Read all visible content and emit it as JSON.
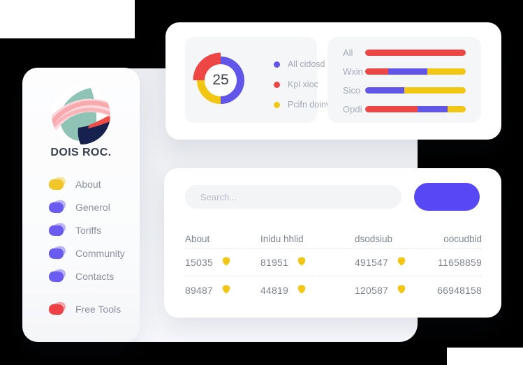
{
  "colors": {
    "accent_blue": "#6156e9",
    "accent_red": "#ee4545",
    "accent_yellow": "#f2c713",
    "button_blue": "#5847f5",
    "badge_yellow": "#f2c713"
  },
  "sidebar": {
    "brand": "DOIS ROC.",
    "items": [
      {
        "label": "About",
        "color": "#f0c629",
        "separated": false
      },
      {
        "label": "Generol",
        "color": "#6a5cf1",
        "separated": false
      },
      {
        "label": "Toriffs",
        "color": "#6a5cf1",
        "separated": false
      },
      {
        "label": "Community",
        "color": "#6a5cf1",
        "separated": false
      },
      {
        "label": "Contacts",
        "color": "#6a5cf1",
        "separated": false
      },
      {
        "label": "Free Tools",
        "color": "#ee4146",
        "separated": true
      }
    ]
  },
  "chart_data": [
    {
      "type": "pie",
      "subtype": "donut",
      "center_value": "25",
      "slices": [
        {
          "name": "All cidosd",
          "value": 50,
          "color": "#6156e9",
          "exploded": false
        },
        {
          "name": "Pcifn doinvi",
          "value": 25,
          "color": "#f2c713",
          "exploded": false
        },
        {
          "name": "Kpi xioc",
          "value": 25,
          "color": "#ee4545",
          "exploded": true
        }
      ],
      "legend_position": "right",
      "legend": [
        {
          "label": "All cidosd",
          "color": "#6156e9"
        },
        {
          "label": "Kpi xioc",
          "color": "#ee4545"
        },
        {
          "label": "Pcifn doinvi",
          "color": "#f2c713"
        }
      ]
    },
    {
      "type": "bar",
      "orientation": "horizontal",
      "stacked": true,
      "xlim": [
        0,
        100
      ],
      "categories": [
        "All",
        "Wxin",
        "Sico",
        "Opdi"
      ],
      "rows": [
        {
          "label": "All",
          "segments": [
            {
              "color": "#ee4545",
              "pct": 100
            }
          ]
        },
        {
          "label": "Wxin",
          "segments": [
            {
              "color": "#ee4545",
              "pct": 23
            },
            {
              "color": "#6156e9",
              "pct": 39
            },
            {
              "color": "#f2c713",
              "pct": 38
            }
          ]
        },
        {
          "label": "Sico",
          "segments": [
            {
              "color": "#6156e9",
              "pct": 39
            },
            {
              "color": "#f2c713",
              "pct": 61
            }
          ]
        },
        {
          "label": "Opdi",
          "segments": [
            {
              "color": "#ee4545",
              "pct": 52
            },
            {
              "color": "#6156e9",
              "pct": 30
            },
            {
              "color": "#f2c713",
              "pct": 18
            }
          ]
        }
      ]
    }
  ],
  "table_card": {
    "search_placeholder": "Search...",
    "button_label": "",
    "columns": [
      "About",
      "Inidu hhlid",
      "dsodsiub",
      "oocudbid"
    ],
    "rows": [
      [
        {
          "value": "15035",
          "badge": true
        },
        {
          "value": "81951",
          "badge": true
        },
        {
          "value": "491547",
          "badge": true
        },
        {
          "value": "11658859",
          "badge": false
        }
      ],
      [
        {
          "value": "89487",
          "badge": true
        },
        {
          "value": "44819",
          "badge": true
        },
        {
          "value": "120587",
          "badge": true
        },
        {
          "value": "66948158",
          "badge": false
        }
      ]
    ]
  }
}
